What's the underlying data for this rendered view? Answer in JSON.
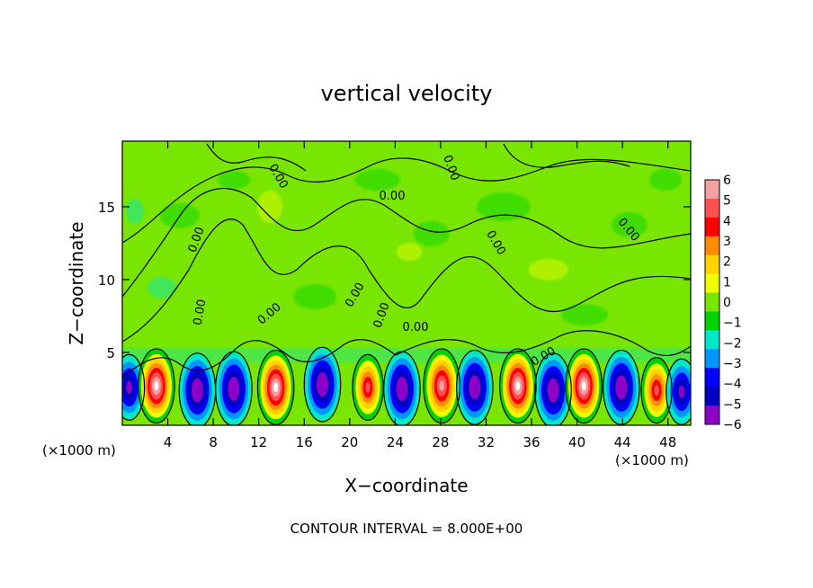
{
  "chart_data": {
    "type": "heatmap",
    "title": "vertical velocity",
    "xlabel": "X−coordinate",
    "ylabel": "Z−coordinate",
    "x_unit_left": "(×1000 m)",
    "x_unit_right": "(×1000 m)",
    "footer": "CONTOUR INTERVAL = 8.000E+00",
    "xlim": [
      0,
      50
    ],
    "ylim": [
      0,
      19.5
    ],
    "x_ticks": [
      4,
      8,
      12,
      16,
      20,
      24,
      28,
      32,
      36,
      40,
      44,
      48
    ],
    "y_ticks": [
      5,
      10,
      15
    ],
    "x_tick_labels": [
      "4",
      "8",
      "12",
      "16",
      "20",
      "24",
      "28",
      "32",
      "36",
      "40",
      "44",
      "48"
    ],
    "y_tick_labels": [
      "5",
      "10",
      "15"
    ],
    "colorbar": {
      "levels": [
        6,
        5,
        4,
        3,
        2,
        1,
        0,
        -1,
        -2,
        -3,
        -4,
        -5,
        -6
      ],
      "labels": [
        "6",
        "5",
        "4",
        "3",
        "2",
        "1",
        "0",
        "−1",
        "−2",
        "−3",
        "−4",
        "−5",
        "−6"
      ],
      "colors": [
        "#f5a0a0",
        "#ff5050",
        "#ff0000",
        "#ff8c00",
        "#ffd200",
        "#f0ff00",
        "#78e600",
        "#00d200",
        "#00e8c8",
        "#0096ff",
        "#0000ff",
        "#0000c0",
        "#8c00c8"
      ]
    },
    "contour_labels": [
      "0.00",
      "0.00",
      "0.00",
      "0.00",
      "0.00",
      "0.00",
      "0.00",
      "0.00",
      "0.00",
      "0.00",
      "0.00",
      "0.00"
    ],
    "cells": [
      {
        "x": 0.6,
        "z": 2.6,
        "w": -4
      },
      {
        "x": 3.0,
        "z": 2.7,
        "w": 6
      },
      {
        "x": 6.6,
        "z": 2.4,
        "w": -5
      },
      {
        "x": 9.8,
        "z": 2.5,
        "w": -5
      },
      {
        "x": 13.5,
        "z": 2.6,
        "w": 6
      },
      {
        "x": 17.6,
        "z": 2.8,
        "w": -6
      },
      {
        "x": 21.6,
        "z": 2.6,
        "w": 4
      },
      {
        "x": 24.6,
        "z": 2.5,
        "w": -5
      },
      {
        "x": 28.1,
        "z": 2.7,
        "w": 5
      },
      {
        "x": 31.0,
        "z": 2.6,
        "w": -6
      },
      {
        "x": 34.8,
        "z": 2.7,
        "w": 6
      },
      {
        "x": 37.9,
        "z": 2.4,
        "w": -6
      },
      {
        "x": 40.6,
        "z": 2.7,
        "w": 6
      },
      {
        "x": 43.9,
        "z": 2.6,
        "w": -6
      },
      {
        "x": 47.0,
        "z": 2.4,
        "w": 4
      },
      {
        "x": 49.2,
        "z": 2.3,
        "w": -4
      }
    ]
  },
  "colors": {
    "background": "#78e600",
    "contour": "#000000"
  }
}
